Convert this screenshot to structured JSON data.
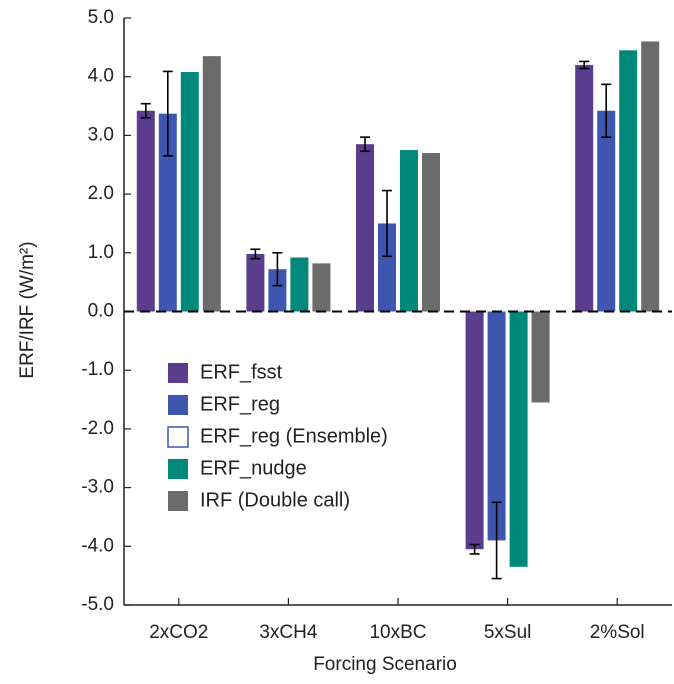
{
  "chart_data": {
    "type": "bar",
    "x_label": "Forcing Scenario",
    "y_label": "ERF/IRF (W/m²)",
    "categories": [
      "2xCO2",
      "3xCH4",
      "10xBC",
      "5xSul",
      "2%Sol"
    ],
    "series": [
      {
        "name": "ERF_fsst",
        "color": "#5a3d8c",
        "values": [
          3.42,
          0.98,
          2.85,
          -4.05,
          4.2
        ],
        "errors": [
          0.12,
          0.08,
          0.12,
          0.08,
          0.06
        ]
      },
      {
        "name": "ERF_reg",
        "color": "#3f56b0",
        "values": [
          3.37,
          0.72,
          1.5,
          -3.9,
          3.42
        ],
        "errors": [
          0.72,
          0.28,
          0.56,
          0.65,
          0.45
        ]
      },
      {
        "name": "ERF_reg (Ensemble)",
        "color": "#3f56b0",
        "hollow": true,
        "values": [
          null,
          null,
          null,
          null,
          null
        ]
      },
      {
        "name": "ERF_nudge",
        "color": "#00897b",
        "values": [
          4.08,
          0.92,
          2.75,
          -4.35,
          4.45
        ]
      },
      {
        "name": "IRF (Double call)",
        "color": "#6b6b6b",
        "values": [
          4.35,
          0.82,
          2.7,
          -1.55,
          4.6
        ]
      }
    ],
    "ylim": [
      -5,
      5
    ],
    "yticks": [
      {
        "value": -5,
        "label": "-5.0"
      },
      {
        "value": -4,
        "label": "-4.0"
      },
      {
        "value": -3,
        "label": "-3.0"
      },
      {
        "value": -2,
        "label": "-2.0"
      },
      {
        "value": -1,
        "label": "-1.0"
      },
      {
        "value": 0,
        "label": "0.0"
      },
      {
        "value": 1,
        "label": "1.0"
      },
      {
        "value": 2,
        "label": "2.0"
      },
      {
        "value": 3,
        "label": "3.0"
      },
      {
        "value": 4,
        "label": "4.0"
      },
      {
        "value": 5,
        "label": "5.0"
      }
    ],
    "zero_line": "dashed",
    "legend": "lower left"
  }
}
